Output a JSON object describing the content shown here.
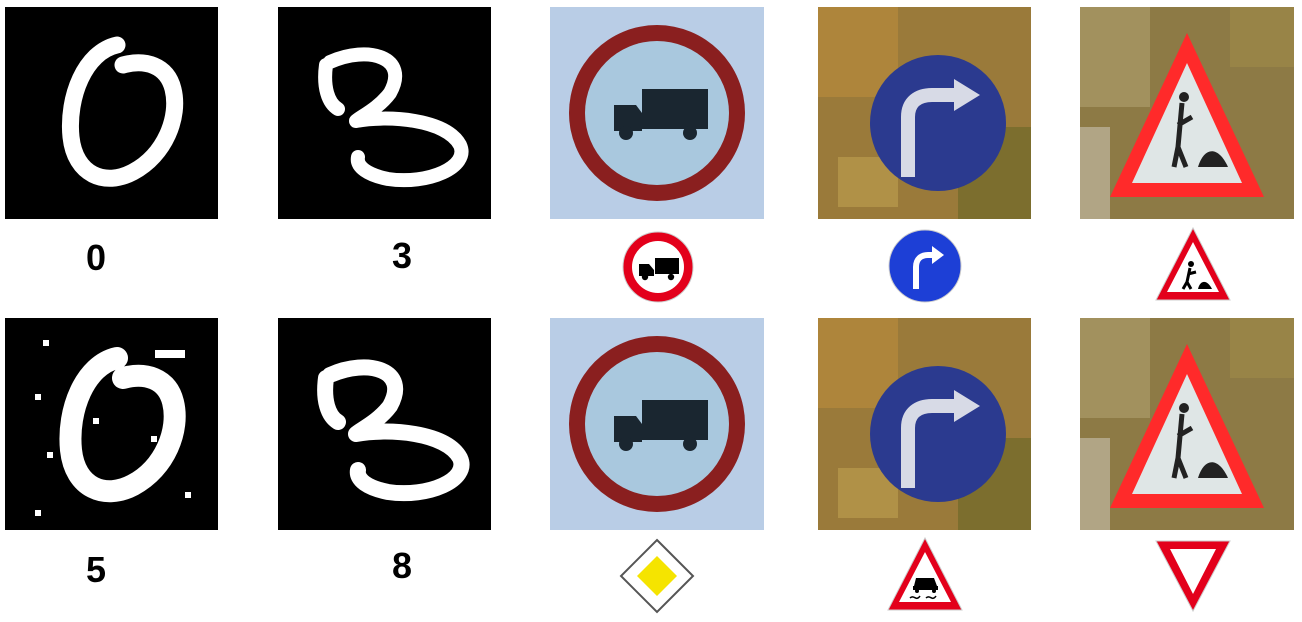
{
  "top_row": {
    "mnist_labels": [
      "0",
      "3"
    ],
    "traffic_sign_icons": [
      "no-trucks-sign-icon",
      "turn-right-ahead-sign-icon",
      "road-work-sign-icon"
    ]
  },
  "bottom_row": {
    "mnist_labels": [
      "5",
      "8"
    ],
    "traffic_sign_icons": [
      "priority-road-sign-icon",
      "slippery-road-sign-icon",
      "yield-sign-icon"
    ]
  },
  "colors": {
    "digit_background": "#000000",
    "digit_stroke": "#ffffff",
    "sign_red": "#e3001b",
    "sign_blue": "#1d3fd6",
    "priority_yellow": "#f5e400",
    "photo_sky": "#b9cde6",
    "photo_foliage": "#9a7a3a"
  }
}
